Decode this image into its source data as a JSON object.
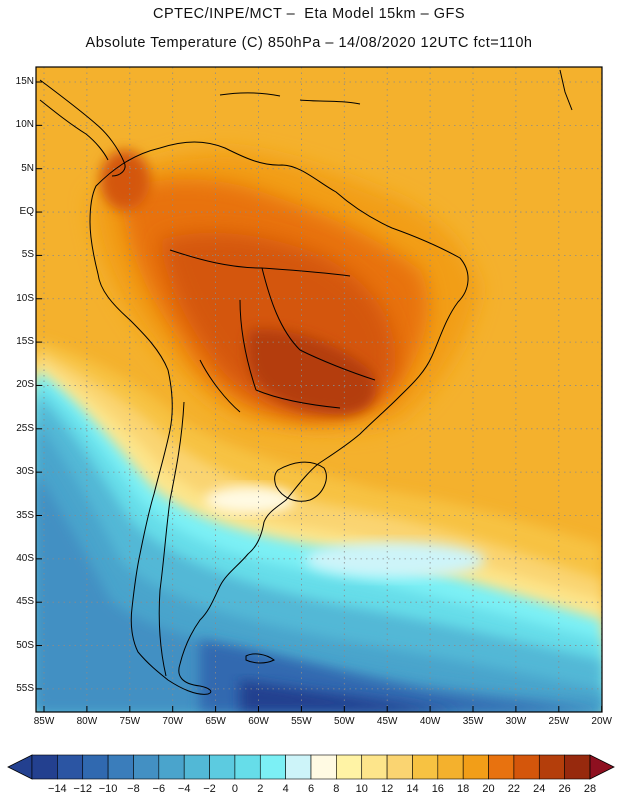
{
  "header": {
    "line1": "CPTEC/INPE/MCT –  Eta Model 15km – GFS",
    "line2": "Absolute Temperature (C) 850hPa – 14/08/2020 12UTC fct=110h"
  },
  "axes": {
    "lat_labels": [
      "15N",
      "10N",
      "5N",
      "EQ",
      "5S",
      "10S",
      "15S",
      "20S",
      "25S",
      "30S",
      "35S",
      "40S",
      "45S",
      "50S",
      "55S"
    ],
    "lon_labels": [
      "85W",
      "80W",
      "75W",
      "70W",
      "65W",
      "60W",
      "55W",
      "50W",
      "45W",
      "40W",
      "35W",
      "30W",
      "25W",
      "20W"
    ]
  },
  "colorbar": {
    "labels": [
      "-14",
      "-12",
      "-10",
      "-8",
      "-6",
      "-4",
      "-2",
      "0",
      "2",
      "4",
      "6",
      "8",
      "10",
      "12",
      "14",
      "16",
      "18",
      "20",
      "22",
      "24",
      "26",
      "28"
    ],
    "low_arrow_color": "#23408f",
    "high_arrow_color": "#8e1020",
    "colors": [
      "#23408f",
      "#2b55a3",
      "#3069b0",
      "#3a7dbb",
      "#4390c3",
      "#4aa4cc",
      "#52b8d6",
      "#5ccbe0",
      "#66dde9",
      "#7cf0f5",
      "#cdf4f9",
      "#fffae3",
      "#fff3a5",
      "#fde58b",
      "#fad471",
      "#f7c242",
      "#f4b12d",
      "#f29e18",
      "#e8720f",
      "#d4560b",
      "#b43e0b",
      "#97290d"
    ]
  }
}
